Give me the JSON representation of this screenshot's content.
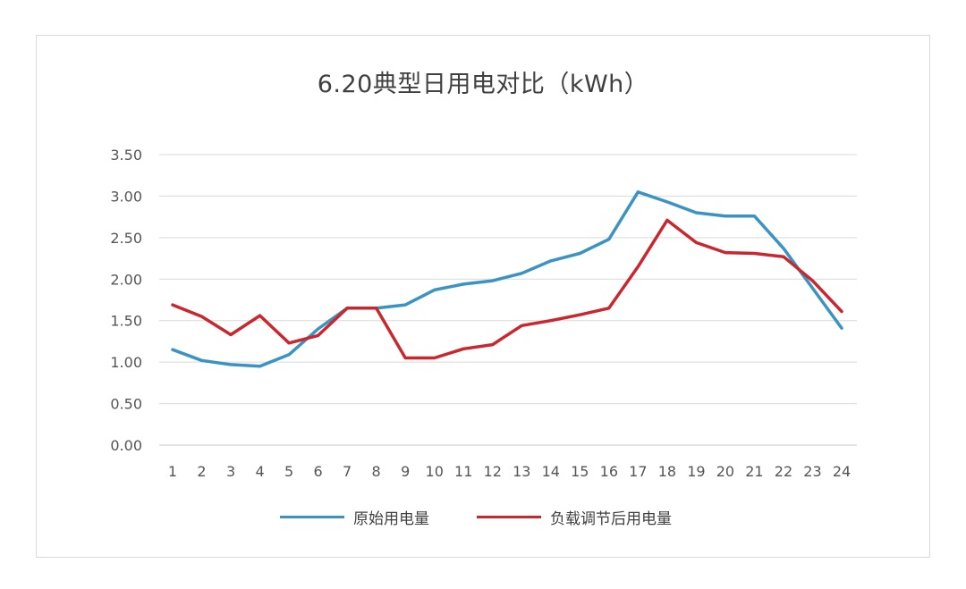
{
  "chart_data": {
    "type": "line",
    "title": "6.20典型日用电对比（kWh）",
    "x": [
      "1",
      "2",
      "3",
      "4",
      "5",
      "6",
      "7",
      "8",
      "9",
      "10",
      "11",
      "12",
      "13",
      "14",
      "15",
      "16",
      "17",
      "18",
      "19",
      "20",
      "21",
      "22",
      "23",
      "24"
    ],
    "y_ticks": [
      "0.00",
      "0.50",
      "1.00",
      "1.50",
      "2.00",
      "2.50",
      "3.00",
      "3.50"
    ],
    "ylim": [
      0,
      3.5
    ],
    "grid": true,
    "legend_position": "bottom",
    "series": [
      {
        "name": "原始用电量",
        "color": "#3a93c3",
        "values": [
          1.15,
          1.02,
          0.97,
          0.95,
          1.09,
          1.4,
          1.65,
          1.65,
          1.69,
          1.87,
          1.94,
          1.98,
          2.07,
          2.22,
          2.31,
          2.48,
          3.05,
          2.93,
          2.8,
          2.76,
          2.76,
          2.37,
          1.89,
          1.41
        ]
      },
      {
        "name": "负载调节后用电量",
        "color": "#c9272d",
        "values": [
          1.69,
          1.55,
          1.33,
          1.56,
          1.23,
          1.32,
          1.65,
          1.65,
          1.05,
          1.05,
          1.16,
          1.21,
          1.44,
          1.5,
          1.57,
          1.65,
          2.15,
          2.71,
          2.44,
          2.32,
          2.31,
          2.27,
          1.98,
          1.61
        ]
      }
    ]
  }
}
